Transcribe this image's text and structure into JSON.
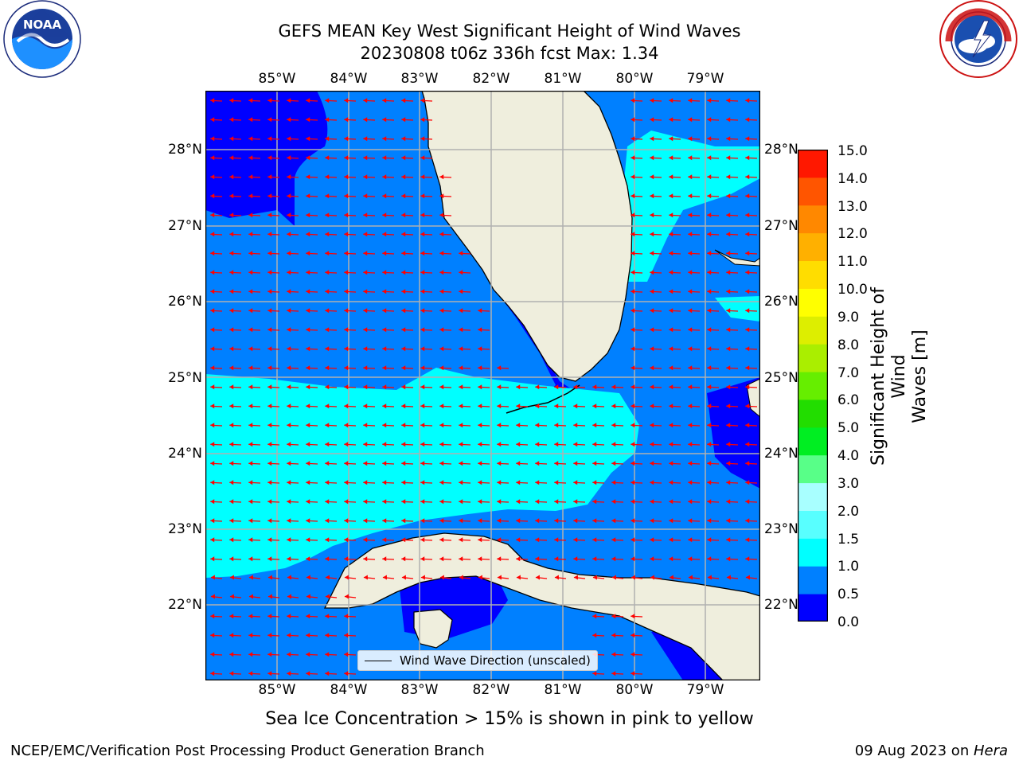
{
  "title": {
    "line1": "GEFS MEAN Key West Significant Height of Wind Waves",
    "line2": "20230808 t06z 336h fcst   Max: 1.34"
  },
  "map": {
    "lon_ticks": [
      "85°W",
      "84°W",
      "83°W",
      "82°W",
      "81°W",
      "80°W",
      "79°W"
    ],
    "lat_ticks": [
      "28°N",
      "27°N",
      "26°N",
      "25°N",
      "24°N",
      "23°N",
      "22°N"
    ],
    "legend_label": "Wind Wave Direction (unscaled)",
    "land_color": "#efeedd",
    "arrow_color": "#ff0000"
  },
  "colorbar": {
    "label": "Significant Height of Wind\nWaves [m]",
    "ticks": [
      "15.0",
      "14.0",
      "13.0",
      "12.0",
      "11.0",
      "10.0",
      "9.0",
      "8.0",
      "7.0",
      "6.0",
      "5.0",
      "4.0",
      "3.0",
      "2.0",
      "1.5",
      "1.0",
      "0.5",
      "0.0"
    ],
    "colors": [
      "#0000ff",
      "#0080ff",
      "#00ffff",
      "#58ffff",
      "#a8ffff",
      "#58ff88",
      "#00ee22",
      "#22dd00",
      "#66ee00",
      "#aaee00",
      "#ddee00",
      "#ffff00",
      "#ffdd00",
      "#ffb000",
      "#ff8800",
      "#ff5500",
      "#ff1800"
    ]
  },
  "logos": {
    "left": "NOAA",
    "right": "NATIONAL WEATHER SERVICE"
  },
  "footer": {
    "note": "Sea Ice Concentration > 15% is shown in pink to yellow",
    "left": "NCEP/EMC/Verification Post Processing Product Generation Branch",
    "right_date": "09 Aug 2023 on ",
    "right_host": "Hera"
  }
}
